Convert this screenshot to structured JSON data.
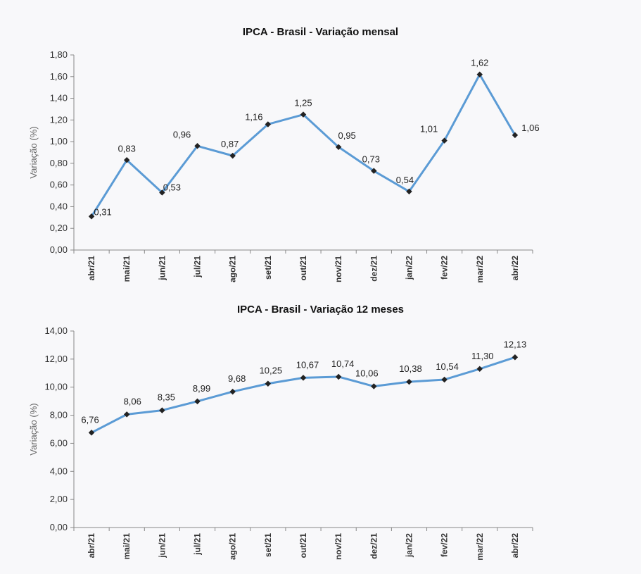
{
  "chart_data": [
    {
      "type": "line",
      "title": "IPCA - Brasil - Variação mensal",
      "ylabel": "Variação (%)",
      "xlabel": "",
      "categories": [
        "abr/21",
        "mai/21",
        "jun/21",
        "jul/21",
        "ago/21",
        "set/21",
        "out/21",
        "nov/21",
        "dez/21",
        "jan/22",
        "fev/22",
        "mar/22",
        "abr/22"
      ],
      "values": [
        0.31,
        0.83,
        0.53,
        0.96,
        0.87,
        1.16,
        1.25,
        0.95,
        0.73,
        0.54,
        1.01,
        1.62,
        1.06
      ],
      "value_labels": [
        "0,31",
        "0,83",
        "0,53",
        "0,96",
        "0,87",
        "1,16",
        "1,25",
        "0,95",
        "0,73",
        "0,54",
        "1,01",
        "1,62",
        "1,06"
      ],
      "yticks": [
        "0,00",
        "0,20",
        "0,40",
        "0,60",
        "0,80",
        "1,00",
        "1,20",
        "1,40",
        "1,60",
        "1,80"
      ],
      "ylim": [
        0,
        1.8
      ],
      "line_color": "#5b9bd5",
      "grid": false
    },
    {
      "type": "line",
      "title": "IPCA - Brasil - Variação 12 meses",
      "ylabel": "Variação (%)",
      "xlabel": "",
      "categories": [
        "abr/21",
        "mai/21",
        "jun/21",
        "jul/21",
        "ago/21",
        "set/21",
        "out/21",
        "nov/21",
        "dez/21",
        "jan/22",
        "fev/22",
        "mar/22",
        "abr/22"
      ],
      "values": [
        6.76,
        8.06,
        8.35,
        8.99,
        9.68,
        10.25,
        10.67,
        10.74,
        10.06,
        10.38,
        10.54,
        11.3,
        12.13
      ],
      "value_labels": [
        "6,76",
        "8,06",
        "8,35",
        "8,99",
        "9,68",
        "10,25",
        "10,67",
        "10,74",
        "10,06",
        "10,38",
        "10,54",
        "11,30",
        "12,13"
      ],
      "yticks": [
        "0,00",
        "2,00",
        "4,00",
        "6,00",
        "8,00",
        "10,00",
        "12,00",
        "14,00"
      ],
      "ylim": [
        0,
        14
      ],
      "line_color": "#5b9bd5",
      "grid": false
    }
  ]
}
